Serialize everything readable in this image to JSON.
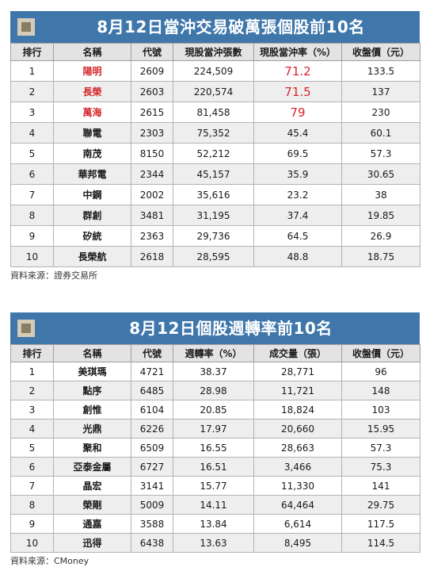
{
  "table1": {
    "title": "8月12日當沖交易破萬張個股前10名",
    "headers": [
      "排行",
      "名稱",
      "代號",
      "現股當沖張數",
      "現股當沖率（%）",
      "收盤價（元）"
    ],
    "rows": [
      {
        "rank": "1",
        "name": "陽明",
        "code": "2609",
        "lots": "224,509",
        "rate": "71.2",
        "close": "133.5"
      },
      {
        "rank": "2",
        "name": "長榮",
        "code": "2603",
        "lots": "220,574",
        "rate": "71.5",
        "close": "137"
      },
      {
        "rank": "3",
        "name": "萬海",
        "code": "2615",
        "lots": "81,458",
        "rate": "79",
        "close": "230"
      },
      {
        "rank": "4",
        "name": "聯電",
        "code": "2303",
        "lots": "75,352",
        "rate": "45.4",
        "close": "60.1"
      },
      {
        "rank": "5",
        "name": "南茂",
        "code": "8150",
        "lots": "52,212",
        "rate": "69.5",
        "close": "57.3"
      },
      {
        "rank": "6",
        "name": "華邦電",
        "code": "2344",
        "lots": "45,157",
        "rate": "35.9",
        "close": "30.65"
      },
      {
        "rank": "7",
        "name": "中鋼",
        "code": "2002",
        "lots": "35,616",
        "rate": "23.2",
        "close": "38"
      },
      {
        "rank": "8",
        "name": "群創",
        "code": "3481",
        "lots": "31,195",
        "rate": "37.4",
        "close": "19.85"
      },
      {
        "rank": "9",
        "name": "矽統",
        "code": "2363",
        "lots": "29,736",
        "rate": "64.5",
        "close": "26.9"
      },
      {
        "rank": "10",
        "name": "長榮航",
        "code": "2618",
        "lots": "28,595",
        "rate": "48.8",
        "close": "18.75"
      }
    ],
    "source": "資料來源：證券交易所"
  },
  "table2": {
    "title": "8月12日個股週轉率前10名",
    "headers": [
      "排行",
      "名稱",
      "代號",
      "週轉率（%）",
      "成交量（張）",
      "收盤價（元）"
    ],
    "rows": [
      {
        "rank": "1",
        "name": "美琪瑪",
        "code": "4721",
        "turnover": "38.37",
        "volume": "28,771",
        "close": "96"
      },
      {
        "rank": "2",
        "name": "點序",
        "code": "6485",
        "turnover": "28.98",
        "volume": "11,721",
        "close": "148"
      },
      {
        "rank": "3",
        "name": "創惟",
        "code": "6104",
        "turnover": "20.85",
        "volume": "18,824",
        "close": "103"
      },
      {
        "rank": "4",
        "name": "光鼎",
        "code": "6226",
        "turnover": "17.97",
        "volume": "20,660",
        "close": "15.95"
      },
      {
        "rank": "5",
        "name": "聚和",
        "code": "6509",
        "turnover": "16.55",
        "volume": "28,663",
        "close": "57.3"
      },
      {
        "rank": "6",
        "name": "亞泰金屬",
        "code": "6727",
        "turnover": "16.51",
        "volume": "3,466",
        "close": "75.3"
      },
      {
        "rank": "7",
        "name": "晶宏",
        "code": "3141",
        "turnover": "15.77",
        "volume": "11,330",
        "close": "141"
      },
      {
        "rank": "8",
        "name": "榮剛",
        "code": "5009",
        "turnover": "14.11",
        "volume": "64,464",
        "close": "29.75"
      },
      {
        "rank": "9",
        "name": "通嘉",
        "code": "3588",
        "turnover": "13.84",
        "volume": "6,614",
        "close": "117.5"
      },
      {
        "rank": "10",
        "name": "迅得",
        "code": "6438",
        "turnover": "13.63",
        "volume": "8,495",
        "close": "114.5"
      }
    ],
    "source": "資料來源：CMoney"
  },
  "colors": {
    "banner": "#3f77ab",
    "header_row": "#e3e3e3",
    "stripe": "#eeeeee",
    "highlight_text": "#d7262b"
  }
}
